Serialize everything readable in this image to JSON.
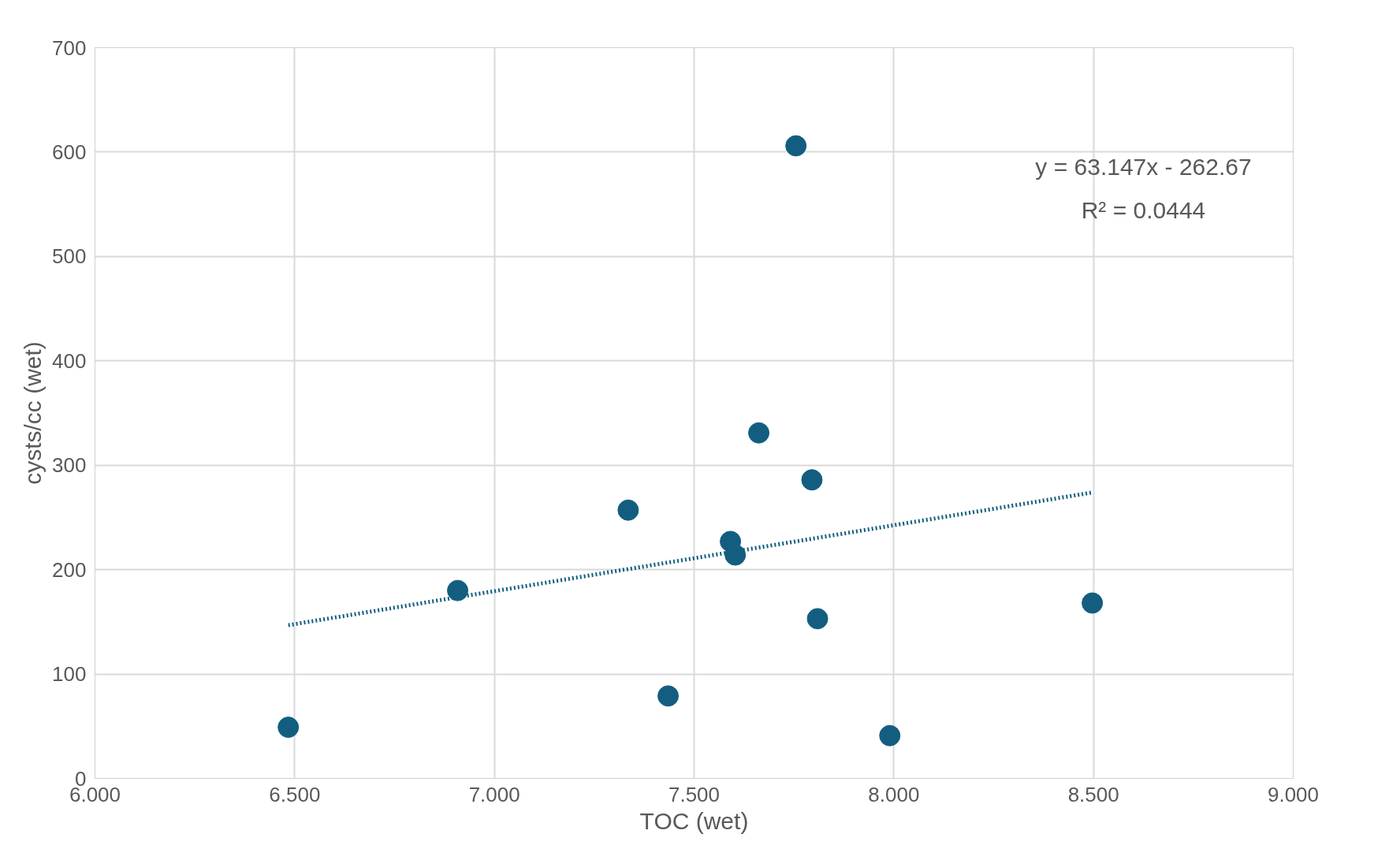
{
  "chart_data": {
    "type": "scatter",
    "xlabel": "TOC (wet)",
    "ylabel": "cysts/cc (wet)",
    "xlim": [
      6,
      9
    ],
    "xticks": [
      {
        "value": 6,
        "label": "6.000"
      },
      {
        "value": 6.5,
        "label": "6.500"
      },
      {
        "value": 7,
        "label": "7.000"
      },
      {
        "value": 7.5,
        "label": "7.500"
      },
      {
        "value": 8,
        "label": "8.000"
      },
      {
        "value": 8.5,
        "label": "8.500"
      },
      {
        "value": 9,
        "label": "9.000"
      }
    ],
    "ylim": [
      0,
      700
    ],
    "yticks": [
      0,
      100,
      200,
      300,
      400,
      500,
      600,
      700
    ],
    "grid": true,
    "annotations": [
      "y = 63.147x - 262.67",
      "R² = 0.0444"
    ],
    "series": [
      {
        "marker": "circle",
        "color": "#135e80",
        "x": [
          6.484,
          6.908,
          7.335,
          7.435,
          7.591,
          7.603,
          7.662,
          7.755,
          7.795,
          7.809,
          7.99,
          8.497
        ],
        "values": [
          49,
          180,
          257,
          79,
          227,
          214,
          331,
          606,
          286,
          153,
          41,
          168
        ]
      },
      {
        "type": "line",
        "line_style": "dotted",
        "color": "#135e80",
        "x": [
          6.484,
          8.497
        ],
        "values": [
          146.8,
          273.9
        ]
      }
    ]
  }
}
